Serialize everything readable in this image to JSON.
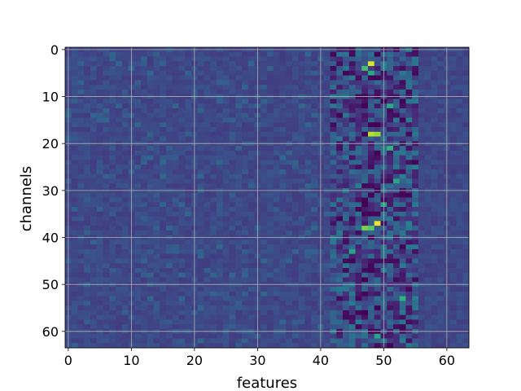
{
  "chart_data": {
    "type": "heatmap",
    "title": "",
    "xlabel": "features",
    "ylabel": "channels",
    "rows": 64,
    "cols": 64,
    "xlim": [
      -0.5,
      63.5
    ],
    "ylim": [
      63.5,
      -0.5
    ],
    "y_axis_inverted": true,
    "grid": true,
    "colormap": "viridis",
    "value_range": [
      0,
      1
    ],
    "x_ticks": [
      0,
      10,
      20,
      30,
      40,
      50,
      60
    ],
    "y_ticks": [
      0,
      10,
      20,
      30,
      40,
      50,
      60
    ],
    "x_tick_labels": [
      "0",
      "10",
      "20",
      "30",
      "40",
      "50",
      "60"
    ],
    "y_tick_labels": [
      "0",
      "10",
      "20",
      "30",
      "40",
      "50",
      "60"
    ],
    "background_level": 0.22,
    "high_activity_band_columns": [
      42,
      55
    ],
    "hotspots": [
      {
        "row": 3,
        "col": 48,
        "value": 0.95
      },
      {
        "row": 4,
        "col": 47,
        "value": 0.7
      },
      {
        "row": 5,
        "col": 48,
        "value": 0.62
      },
      {
        "row": 12,
        "col": 51,
        "value": 0.62
      },
      {
        "row": 18,
        "col": 48,
        "value": 0.9
      },
      {
        "row": 18,
        "col": 49,
        "value": 0.85
      },
      {
        "row": 21,
        "col": 51,
        "value": 0.65
      },
      {
        "row": 28,
        "col": 52,
        "value": 0.6
      },
      {
        "row": 33,
        "col": 50,
        "value": 0.6
      },
      {
        "row": 37,
        "col": 49,
        "value": 0.98
      },
      {
        "row": 38,
        "col": 47,
        "value": 0.8
      },
      {
        "row": 38,
        "col": 48,
        "value": 0.75
      },
      {
        "row": 43,
        "col": 45,
        "value": 0.6
      },
      {
        "row": 53,
        "col": 53,
        "value": 0.65
      },
      {
        "row": 61,
        "col": 49,
        "value": 0.6
      }
    ]
  },
  "colors": {
    "background": "#ffffff",
    "grid": "#b0b0b0",
    "axis": "#000000"
  }
}
